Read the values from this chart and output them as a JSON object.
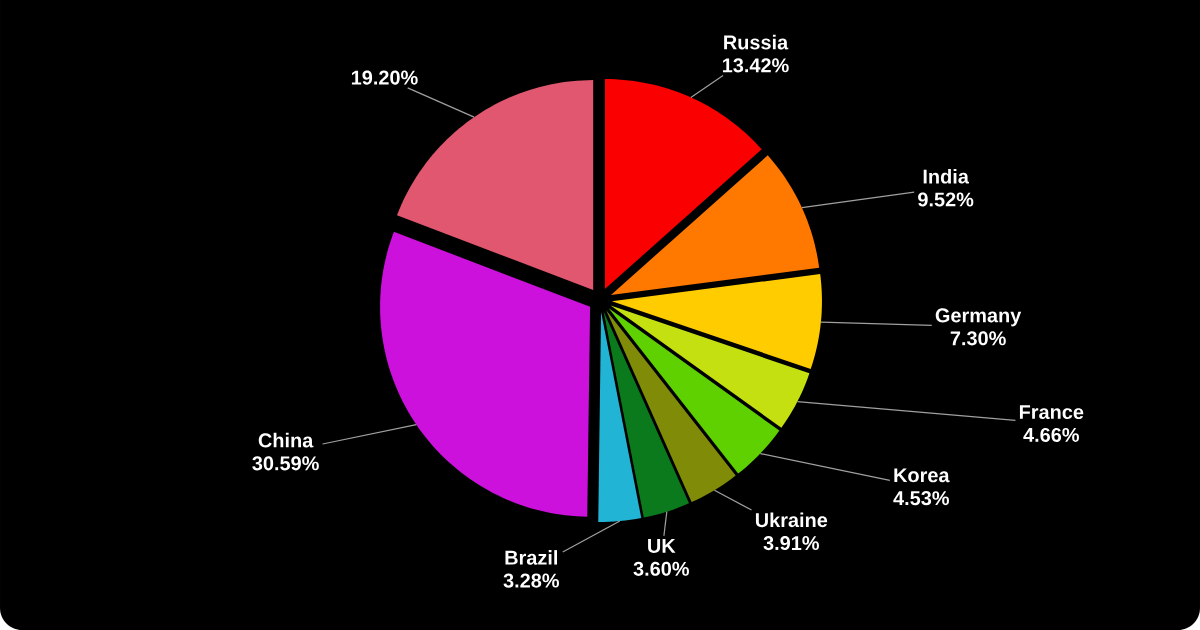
{
  "chart_data": {
    "type": "pie",
    "categories": [
      "Russia",
      "India",
      "Germany",
      "France",
      "Korea",
      "Ukraine",
      "UK",
      "Brazil",
      "China",
      null
    ],
    "values": [
      13.42,
      9.52,
      7.3,
      4.66,
      4.53,
      3.91,
      3.6,
      3.28,
      30.59,
      19.2
    ],
    "colors": [
      "#fa0000",
      "#ff7800",
      "#ffcc00",
      "#c4e010",
      "#5fd000",
      "#808c08",
      "#0b7a1c",
      "#22b4d4",
      "#cc11dd",
      "#e0576f"
    ],
    "value_labels": [
      "13.42%",
      "9.52%",
      "7.30%",
      "4.66%",
      "4.53%",
      "3.91%",
      "3.60%",
      "3.28%",
      "30.59%",
      "19.20%"
    ]
  }
}
